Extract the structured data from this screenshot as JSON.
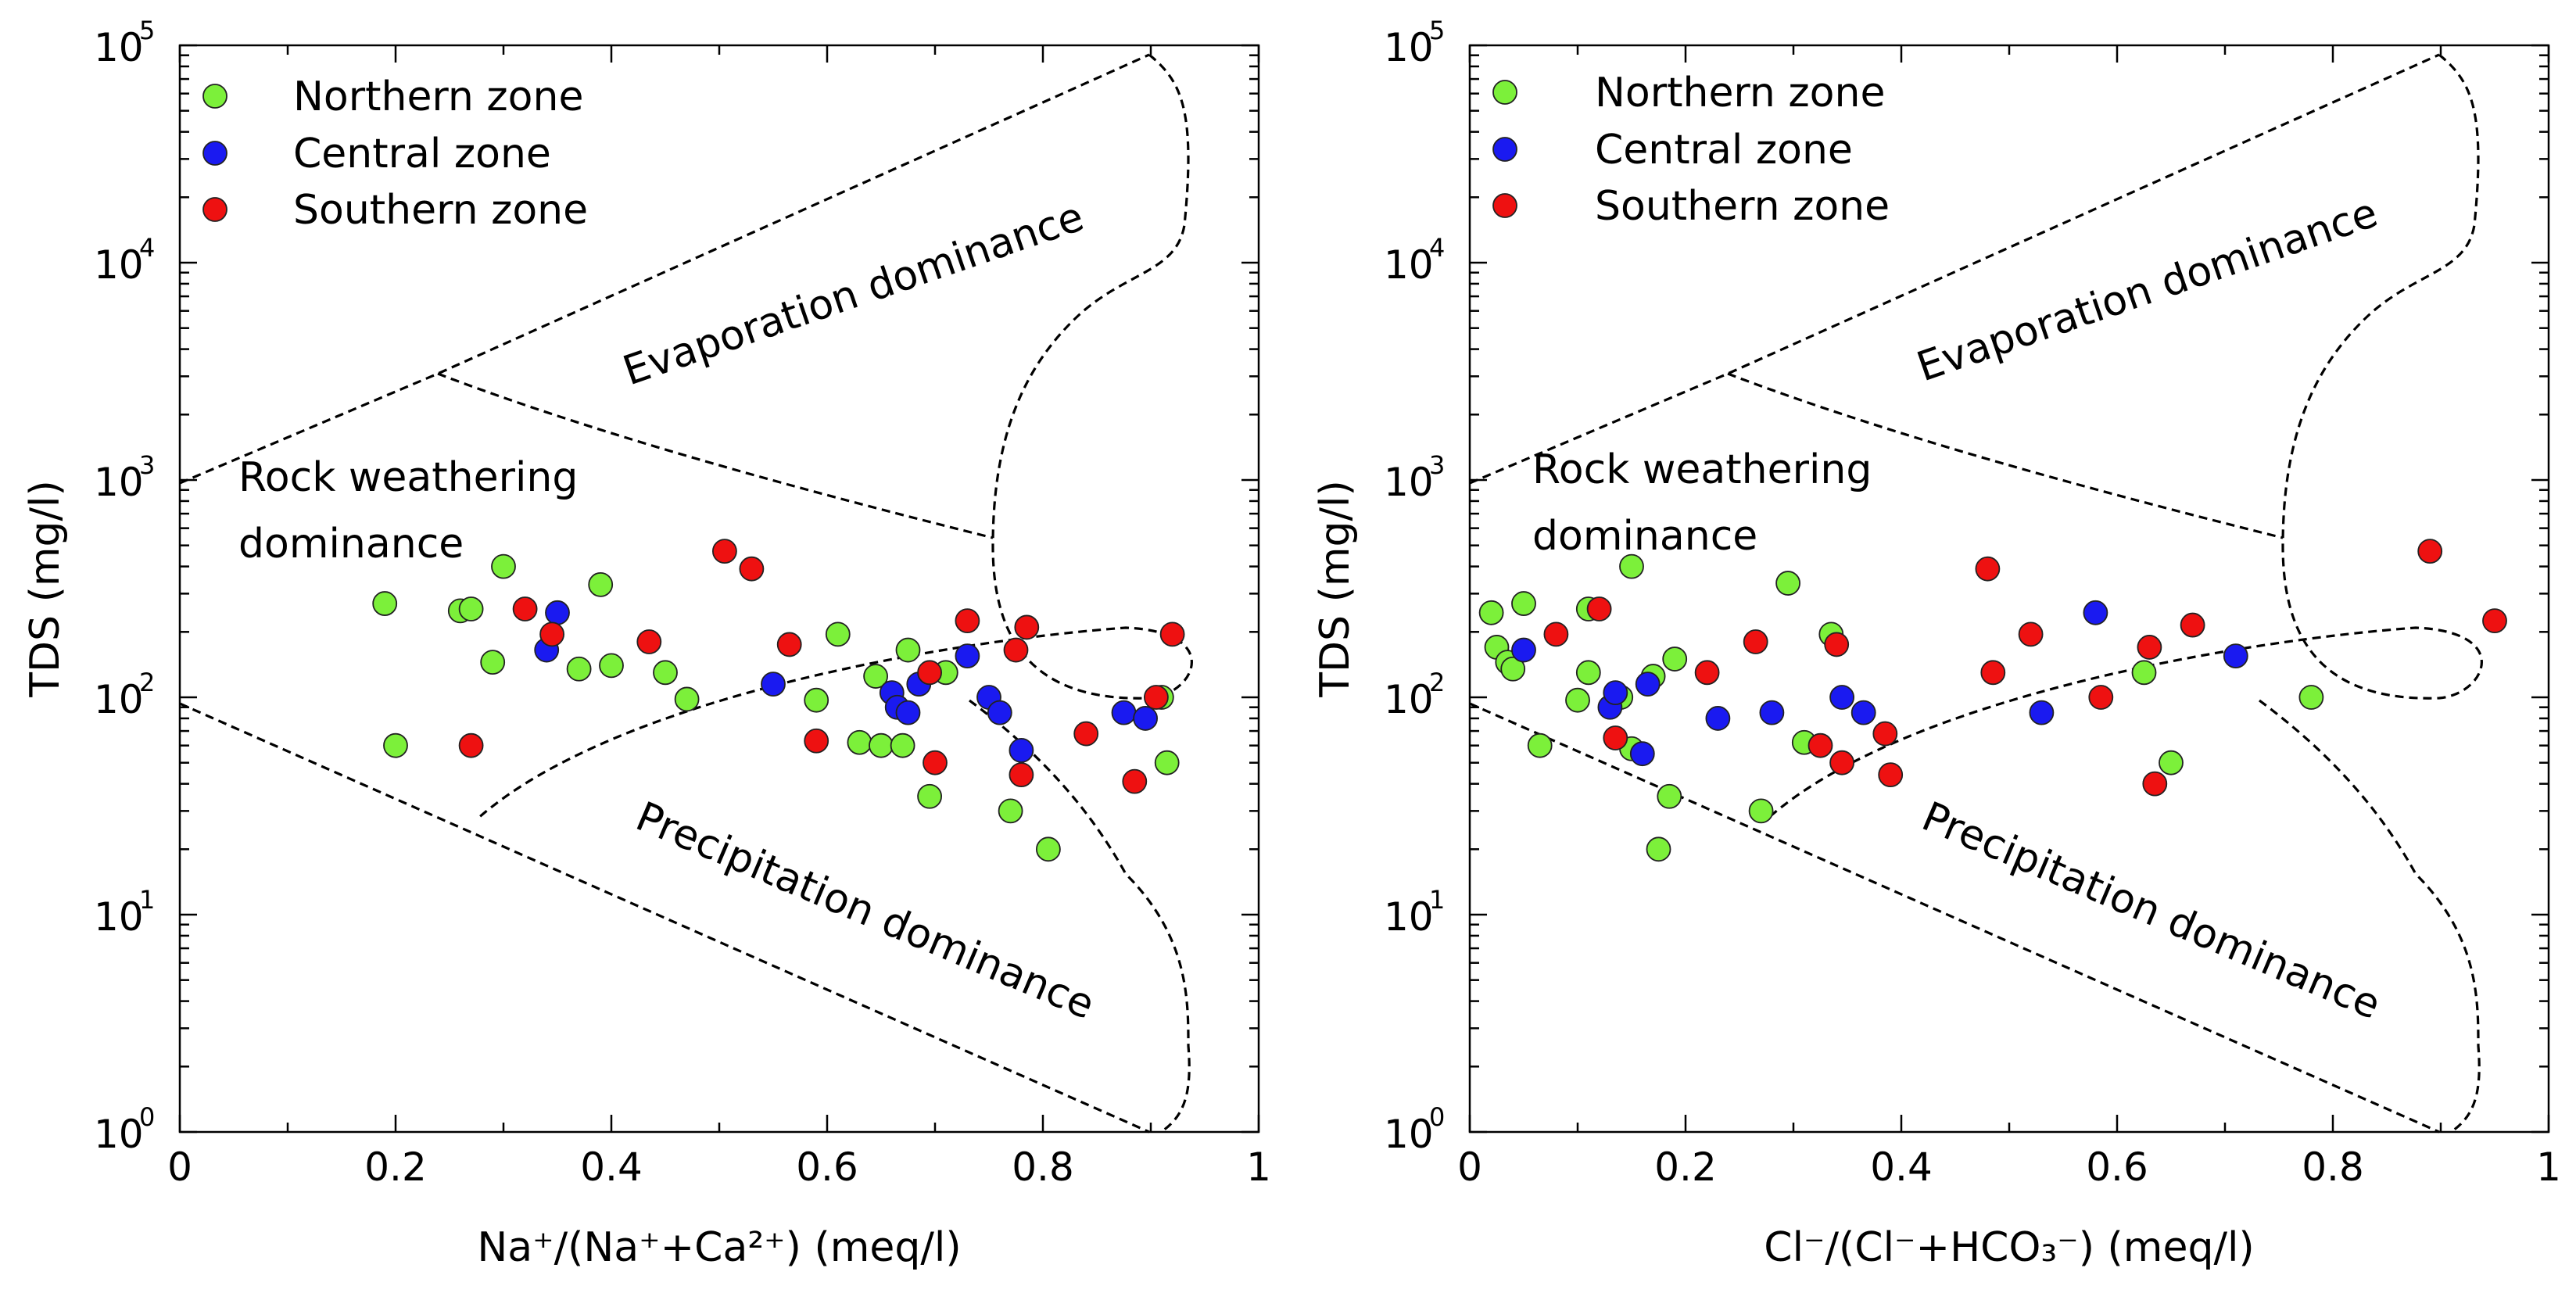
{
  "colors": {
    "Northern zone": "#7CF03A",
    "Central zone": "#1A1AF0",
    "Southern zone": "#EE1111"
  },
  "chart_data": [
    {
      "type": "scatter",
      "xlabel": "Na⁺/(Na⁺+Ca²⁺) (meq/l)",
      "ylabel": "TDS (mg/l)",
      "yscale": "log",
      "xlim": [
        0,
        1
      ],
      "ylim": [
        1,
        100000
      ],
      "xticks": [
        "0",
        "0.2",
        "0.4",
        "0.6",
        "0.8",
        "1"
      ],
      "yticks": [
        {
          "base": "10",
          "exp": "0"
        },
        {
          "base": "10",
          "exp": "1"
        },
        {
          "base": "10",
          "exp": "2"
        },
        {
          "base": "10",
          "exp": "3"
        },
        {
          "base": "10",
          "exp": "4"
        },
        {
          "base": "10",
          "exp": "5"
        }
      ],
      "legend": [
        "Northern zone",
        "Central zone",
        "Southern zone"
      ],
      "regions": [
        "Evaporation dominance",
        "Rock weathering",
        "dominance",
        "Precipitation dominance"
      ],
      "series": [
        {
          "name": "Northern zone",
          "points": [
            [
              0.19,
              270
            ],
            [
              0.2,
              60
            ],
            [
              0.26,
              250
            ],
            [
              0.27,
              255
            ],
            [
              0.29,
              145
            ],
            [
              0.3,
              400
            ],
            [
              0.37,
              135
            ],
            [
              0.39,
              330
            ],
            [
              0.4,
              140
            ],
            [
              0.45,
              130
            ],
            [
              0.47,
              98
            ],
            [
              0.59,
              97
            ],
            [
              0.61,
              195
            ],
            [
              0.63,
              62
            ],
            [
              0.645,
              125
            ],
            [
              0.65,
              60
            ],
            [
              0.67,
              60
            ],
            [
              0.675,
              165
            ],
            [
              0.695,
              35
            ],
            [
              0.71,
              130
            ],
            [
              0.77,
              30
            ],
            [
              0.805,
              20
            ],
            [
              0.91,
              100
            ],
            [
              0.915,
              50
            ]
          ]
        },
        {
          "name": "Central zone",
          "points": [
            [
              0.34,
              165
            ],
            [
              0.35,
              245
            ],
            [
              0.55,
              115
            ],
            [
              0.66,
              105
            ],
            [
              0.665,
              90
            ],
            [
              0.675,
              85
            ],
            [
              0.685,
              115
            ],
            [
              0.73,
              155
            ],
            [
              0.75,
              100
            ],
            [
              0.76,
              85
            ],
            [
              0.78,
              57
            ],
            [
              0.875,
              85
            ],
            [
              0.895,
              80
            ]
          ]
        },
        {
          "name": "Southern zone",
          "points": [
            [
              0.27,
              60
            ],
            [
              0.32,
              255
            ],
            [
              0.345,
              195
            ],
            [
              0.435,
              180
            ],
            [
              0.505,
              470
            ],
            [
              0.53,
              390
            ],
            [
              0.565,
              175
            ],
            [
              0.59,
              63
            ],
            [
              0.695,
              130
            ],
            [
              0.7,
              50
            ],
            [
              0.73,
              225
            ],
            [
              0.775,
              165
            ],
            [
              0.78,
              44
            ],
            [
              0.785,
              210
            ],
            [
              0.84,
              68
            ],
            [
              0.885,
              41
            ],
            [
              0.905,
              100
            ],
            [
              0.92,
              195
            ]
          ]
        }
      ]
    },
    {
      "type": "scatter",
      "xlabel": "Cl⁻/(Cl⁻+HCO₃⁻) (meq/l)",
      "ylabel": "TDS (mg/l)",
      "yscale": "log",
      "xlim": [
        0,
        1
      ],
      "ylim": [
        1,
        100000
      ],
      "xticks": [
        "0",
        "0.2",
        "0.4",
        "0.6",
        "0.8",
        "1"
      ],
      "yticks": [
        {
          "base": "10",
          "exp": "0"
        },
        {
          "base": "10",
          "exp": "1"
        },
        {
          "base": "10",
          "exp": "2"
        },
        {
          "base": "10",
          "exp": "3"
        },
        {
          "base": "10",
          "exp": "4"
        },
        {
          "base": "10",
          "exp": "5"
        }
      ],
      "legend": [
        "Northern zone",
        "Central zone",
        "Southern zone"
      ],
      "regions": [
        "Evaporation dominance",
        "Rock weathering",
        "dominance",
        "Precipitation dominance"
      ],
      "series": [
        {
          "name": "Northern zone",
          "points": [
            [
              0.02,
              245
            ],
            [
              0.025,
              170
            ],
            [
              0.035,
              145
            ],
            [
              0.04,
              135
            ],
            [
              0.05,
              270
            ],
            [
              0.065,
              60
            ],
            [
              0.1,
              97
            ],
            [
              0.11,
              130
            ],
            [
              0.11,
              255
            ],
            [
              0.14,
              100
            ],
            [
              0.15,
              58
            ],
            [
              0.15,
              400
            ],
            [
              0.17,
              125
            ],
            [
              0.175,
              20
            ],
            [
              0.185,
              35
            ],
            [
              0.19,
              150
            ],
            [
              0.27,
              30
            ],
            [
              0.295,
              335
            ],
            [
              0.31,
              62
            ],
            [
              0.335,
              195
            ],
            [
              0.625,
              130
            ],
            [
              0.65,
              50
            ],
            [
              0.78,
              100
            ]
          ]
        },
        {
          "name": "Central zone",
          "points": [
            [
              0.05,
              165
            ],
            [
              0.13,
              90
            ],
            [
              0.135,
              105
            ],
            [
              0.16,
              55
            ],
            [
              0.165,
              115
            ],
            [
              0.23,
              80
            ],
            [
              0.28,
              85
            ],
            [
              0.345,
              100
            ],
            [
              0.365,
              85
            ],
            [
              0.53,
              85
            ],
            [
              0.58,
              245
            ],
            [
              0.71,
              155
            ]
          ]
        },
        {
          "name": "Southern zone",
          "points": [
            [
              0.08,
              195
            ],
            [
              0.12,
              255
            ],
            [
              0.135,
              65
            ],
            [
              0.22,
              130
            ],
            [
              0.265,
              180
            ],
            [
              0.325,
              60
            ],
            [
              0.34,
              175
            ],
            [
              0.345,
              50
            ],
            [
              0.385,
              68
            ],
            [
              0.39,
              44
            ],
            [
              0.48,
              390
            ],
            [
              0.485,
              130
            ],
            [
              0.52,
              195
            ],
            [
              0.585,
              100
            ],
            [
              0.63,
              170
            ],
            [
              0.635,
              40
            ],
            [
              0.67,
              215
            ],
            [
              0.89,
              470
            ],
            [
              0.95,
              225
            ]
          ]
        }
      ]
    }
  ]
}
